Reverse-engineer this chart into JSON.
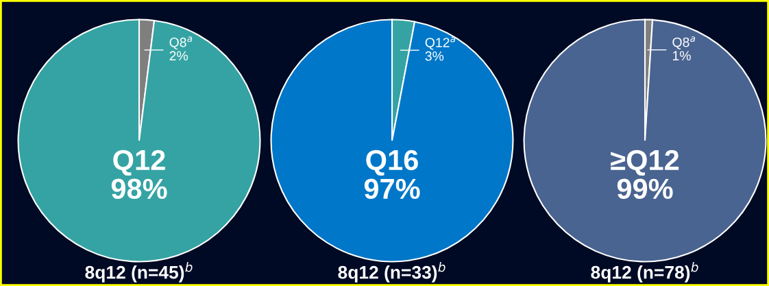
{
  "chart_data": [
    {
      "type": "pie",
      "title": "8q12 (n=45)$^{b}$",
      "categories": [
        "Q8$^{a}$",
        "Q12"
      ],
      "values": [
        2,
        98
      ],
      "value_labels": [
        "2%",
        "98%"
      ],
      "colors": [
        "#7f7f7f",
        "#35a3a3"
      ]
    },
    {
      "type": "pie",
      "title": "8q12 (n=33)$^{b}$",
      "categories": [
        "Q12$^{a}$",
        "Q16"
      ],
      "values": [
        3,
        97
      ],
      "value_labels": [
        "3%",
        "97%"
      ],
      "colors": [
        "#35a3a3",
        "#0077c8"
      ]
    },
    {
      "type": "pie",
      "title": "8q12 (n=78)$^{b}$",
      "categories": [
        "Q8$^{a}$",
        "≥Q12"
      ],
      "values": [
        1,
        99
      ],
      "value_labels": [
        "1%",
        "99%"
      ],
      "colors": [
        "#7f7f7f",
        "#4a6491"
      ]
    }
  ]
}
